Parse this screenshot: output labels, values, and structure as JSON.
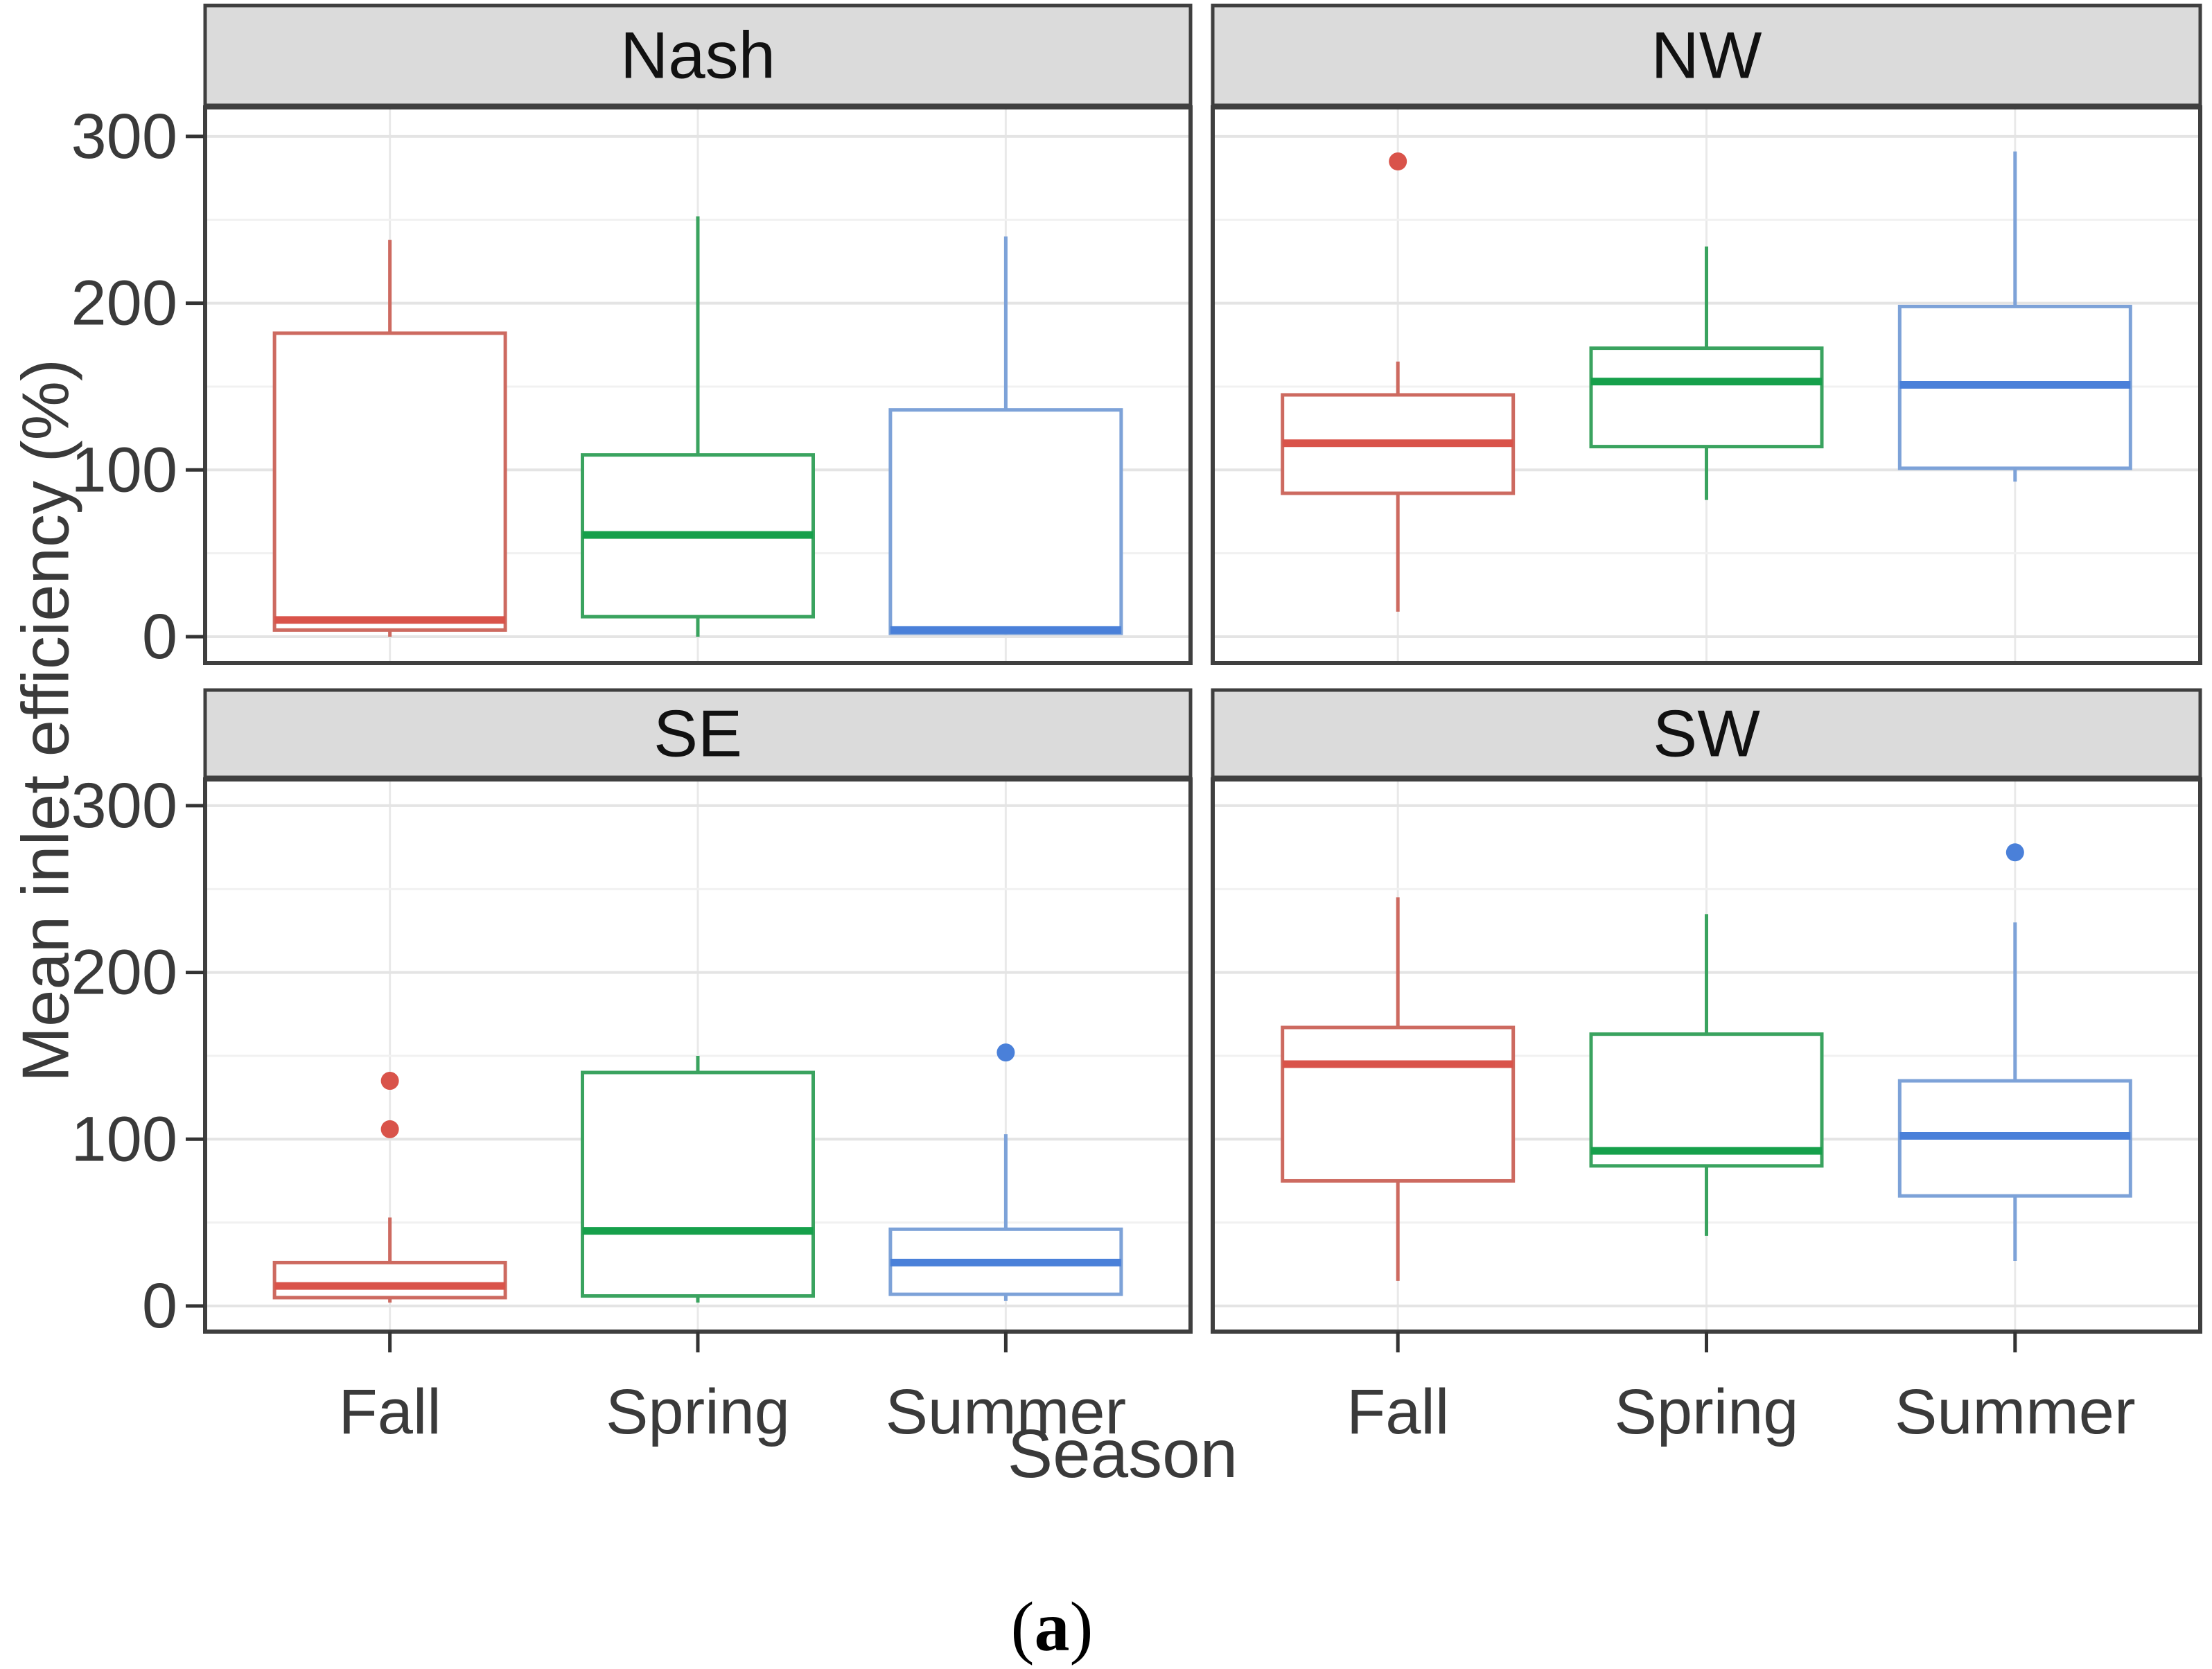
{
  "figure": {
    "caption": "(a)",
    "background": "#ffffff"
  },
  "chart_data": {
    "type": "boxplot",
    "title": "",
    "xlabel": "Season",
    "ylabel": "Mean inlet efficiency (%)",
    "categories": [
      "Fall",
      "Spring",
      "Summer"
    ],
    "facet_labels": [
      "Nash",
      "NW",
      "SE",
      "SW"
    ],
    "y_axis": {
      "title": "Mean inlet efficiency (%)",
      "ticks": [
        0,
        100,
        200,
        300
      ],
      "minor_ticks": [
        50,
        150,
        250
      ],
      "range": [
        -16,
        316
      ],
      "grid": true
    },
    "x_axis": {
      "title": "Season",
      "grid": true
    },
    "legend": "none",
    "facets": [
      {
        "label": "Nash",
        "row": 0,
        "col": 0,
        "boxes": [
          {
            "season": "Fall",
            "min": 0,
            "q1": 4,
            "median": 10,
            "q3": 182,
            "max": 238,
            "outliers": []
          },
          {
            "season": "Spring",
            "min": 0,
            "q1": 12,
            "median": 61,
            "q3": 109,
            "max": 252,
            "outliers": []
          },
          {
            "season": "Summer",
            "min": 1,
            "q1": 2,
            "median": 4,
            "q3": 136,
            "max": 240,
            "outliers": []
          }
        ]
      },
      {
        "label": "NW",
        "row": 0,
        "col": 1,
        "boxes": [
          {
            "season": "Fall",
            "min": 15,
            "q1": 86,
            "median": 116,
            "q3": 145,
            "max": 165,
            "outliers": [
              285
            ]
          },
          {
            "season": "Spring",
            "min": 82,
            "q1": 114,
            "median": 153,
            "q3": 173,
            "max": 234,
            "outliers": []
          },
          {
            "season": "Summer",
            "min": 93,
            "q1": 101,
            "median": 151,
            "q3": 198,
            "max": 291,
            "outliers": []
          }
        ]
      },
      {
        "label": "SE",
        "row": 1,
        "col": 0,
        "boxes": [
          {
            "season": "Fall",
            "min": 2,
            "q1": 5,
            "median": 12,
            "q3": 26,
            "max": 53,
            "outliers": [
              135,
              106
            ]
          },
          {
            "season": "Spring",
            "min": 2,
            "q1": 6,
            "median": 45,
            "q3": 140,
            "max": 150,
            "outliers": []
          },
          {
            "season": "Summer",
            "min": 3,
            "q1": 7,
            "median": 26,
            "q3": 46,
            "max": 103,
            "outliers": [
              152
            ]
          }
        ]
      },
      {
        "label": "SW",
        "row": 1,
        "col": 1,
        "boxes": [
          {
            "season": "Fall",
            "min": 15,
            "q1": 75,
            "median": 145,
            "q3": 167,
            "max": 245,
            "outliers": []
          },
          {
            "season": "Spring",
            "min": 42,
            "q1": 84,
            "median": 93,
            "q3": 163,
            "max": 235,
            "outliers": []
          },
          {
            "season": "Summer",
            "min": 27,
            "q1": 66,
            "median": 102,
            "q3": 135,
            "max": 230,
            "outliers": [
              272
            ]
          }
        ]
      }
    ],
    "series_colors": {
      "Fall": {
        "stroke": "#CD6A60",
        "median": "#D9534A"
      },
      "Spring": {
        "stroke": "#3AA35F",
        "median": "#16A04B"
      },
      "Summer": {
        "stroke": "#7DA2D8",
        "median": "#4A80D9"
      }
    },
    "panel_colors": {
      "strip_background": "#DBDBDB",
      "strip_border": "#3F3F3F",
      "panel_border": "#3F3F3F",
      "panel_background": "#FFFFFF",
      "grid_major": "#E4E4E4",
      "grid_minor": "#F1F1F1",
      "grid_vertical": "#E9E9E9",
      "tick_color": "#333333"
    }
  }
}
